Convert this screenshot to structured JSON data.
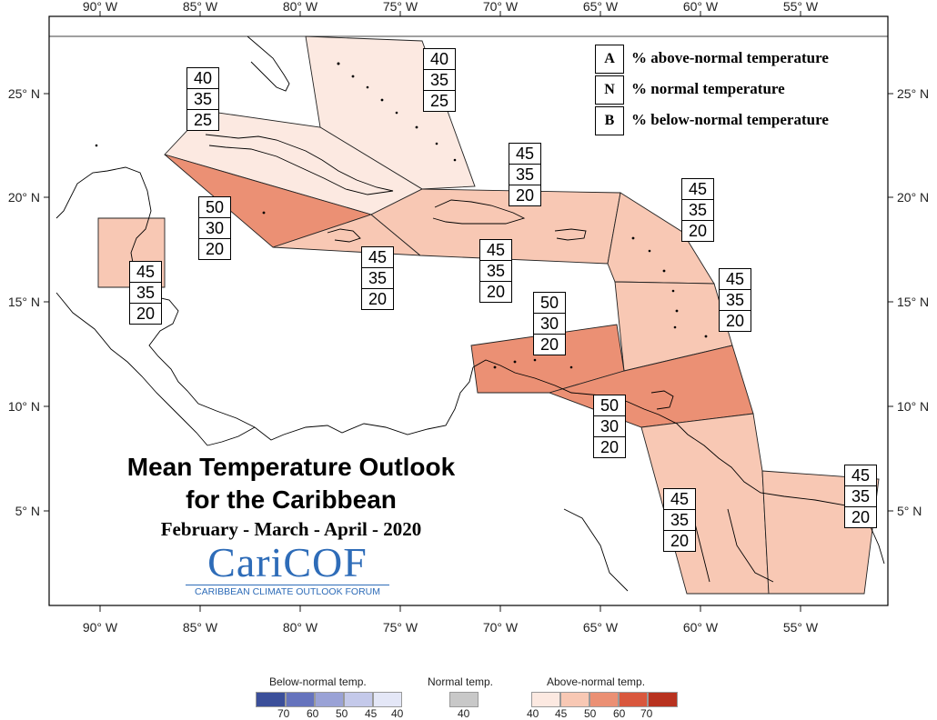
{
  "map": {
    "lon_ticks": [
      "90° W",
      "85° W",
      "80° W",
      "75° W",
      "70° W",
      "65° W",
      "60° W",
      "55° W"
    ],
    "lat_ticks": [
      "25° N",
      "20° N",
      "15° N",
      "10° N",
      "5° N"
    ]
  },
  "legend_key": [
    {
      "letter": "A",
      "text": "% above-normal temperature"
    },
    {
      "letter": "N",
      "text": "% normal temperature"
    },
    {
      "letter": "B",
      "text": "% below-normal temperature"
    }
  ],
  "region_probabilities": [
    {
      "a": "40",
      "n": "35",
      "b": "25"
    },
    {
      "a": "40",
      "n": "35",
      "b": "25"
    },
    {
      "a": "50",
      "n": "30",
      "b": "20"
    },
    {
      "a": "45",
      "n": "35",
      "b": "20"
    },
    {
      "a": "45",
      "n": "35",
      "b": "20"
    },
    {
      "a": "45",
      "n": "35",
      "b": "20"
    },
    {
      "a": "45",
      "n": "35",
      "b": "20"
    },
    {
      "a": "45",
      "n": "35",
      "b": "20"
    },
    {
      "a": "45",
      "n": "35",
      "b": "20"
    },
    {
      "a": "50",
      "n": "30",
      "b": "20"
    },
    {
      "a": "50",
      "n": "30",
      "b": "20"
    },
    {
      "a": "45",
      "n": "35",
      "b": "20"
    },
    {
      "a": "45",
      "n": "35",
      "b": "20"
    }
  ],
  "title": {
    "line1": "Mean Temperature Outlook",
    "line2": "for the Caribbean",
    "period": "February - March - April - 2020"
  },
  "logo": {
    "name": "CariCOF",
    "subtitle": "CARIBBEAN CLIMATE OUTLOOK FORUM"
  },
  "colors": {
    "above_40": "#fce9e1",
    "above_45": "#f8c8b4",
    "above_50": "#eb9074",
    "above_60": "#d9573d",
    "above_70": "#b8321f",
    "below_70": "#3b4f9a",
    "below_60": "#6573bd",
    "below_50": "#9aa2d6",
    "below_45": "#c4c9ea",
    "below_40": "#e4e7f7",
    "normal_40": "#c8c8c8"
  },
  "color_scale": {
    "below": {
      "title": "Below-normal temp.",
      "ticks": [
        "70",
        "60",
        "50",
        "45",
        "40"
      ]
    },
    "normal": {
      "title": "Normal temp.",
      "ticks": [
        "40"
      ]
    },
    "above": {
      "title": "Above-normal temp.",
      "ticks": [
        "40",
        "45",
        "50",
        "60",
        "70"
      ]
    }
  }
}
